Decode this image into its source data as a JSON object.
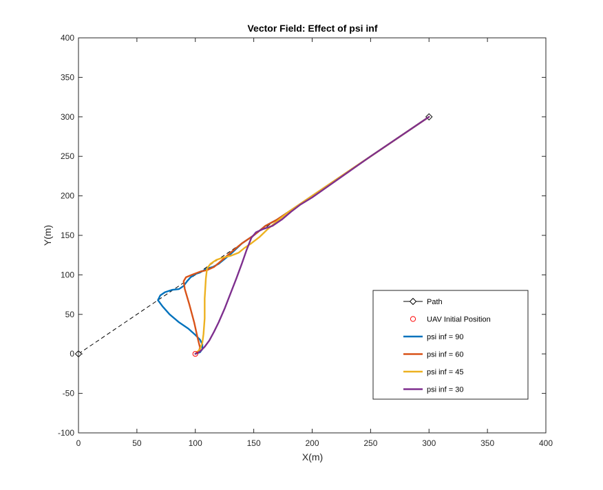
{
  "chart_data": {
    "type": "line",
    "title": "Vector Field: Effect of psi inf",
    "xlabel": "X(m)",
    "ylabel": "Y(m)",
    "xlim": [
      0,
      400
    ],
    "ylim": [
      -100,
      400
    ],
    "xticks": [
      0,
      50,
      100,
      150,
      200,
      250,
      300,
      350,
      400
    ],
    "yticks": [
      -100,
      -50,
      0,
      50,
      100,
      150,
      200,
      250,
      300,
      350,
      400
    ],
    "grid": false,
    "legend_position": "bottom-right",
    "series": [
      {
        "name": "Path",
        "style": "dashed",
        "marker": "diamond",
        "color": "#000000",
        "points": [
          [
            0,
            0
          ],
          [
            300,
            300
          ]
        ]
      },
      {
        "name": "UAV Initial Position",
        "style": "marker-only",
        "marker": "circle",
        "color": "#ff0000",
        "points": [
          [
            100,
            0
          ]
        ]
      },
      {
        "name": "psi inf = 90",
        "style": "solid",
        "color": "#0072bd",
        "points": [
          [
            100,
            0
          ],
          [
            104,
            2
          ],
          [
            106,
            6
          ],
          [
            106,
            12
          ],
          [
            104,
            18
          ],
          [
            100,
            24
          ],
          [
            94,
            32
          ],
          [
            86,
            40
          ],
          [
            78,
            50
          ],
          [
            72,
            60
          ],
          [
            68,
            68
          ],
          [
            70,
            74
          ],
          [
            74,
            78
          ],
          [
            80,
            81
          ],
          [
            86,
            82
          ],
          [
            90,
            86
          ],
          [
            93,
            92
          ],
          [
            96,
            97
          ],
          [
            100,
            101
          ],
          [
            104,
            103
          ],
          [
            110,
            108
          ],
          [
            115,
            110
          ],
          [
            120,
            114
          ],
          [
            130,
            126
          ],
          [
            140,
            140
          ],
          [
            150,
            150
          ],
          [
            160,
            162
          ],
          [
            170,
            170
          ],
          [
            180,
            180
          ],
          [
            200,
            200
          ],
          [
            250,
            250
          ],
          [
            300,
            300
          ]
        ]
      },
      {
        "name": "psi inf = 60",
        "style": "solid",
        "color": "#d95319",
        "points": [
          [
            100,
            0
          ],
          [
            103,
            3
          ],
          [
            104,
            8
          ],
          [
            102,
            20
          ],
          [
            99,
            40
          ],
          [
            95,
            62
          ],
          [
            91,
            82
          ],
          [
            90,
            92
          ],
          [
            92,
            97
          ],
          [
            97,
            100
          ],
          [
            104,
            104
          ],
          [
            110,
            106
          ],
          [
            116,
            110
          ],
          [
            124,
            120
          ],
          [
            130,
            128
          ],
          [
            140,
            140
          ],
          [
            150,
            150
          ],
          [
            160,
            162
          ],
          [
            170,
            170
          ],
          [
            180,
            180
          ],
          [
            200,
            200
          ],
          [
            250,
            250
          ],
          [
            300,
            300
          ]
        ]
      },
      {
        "name": "psi inf = 45",
        "style": "solid",
        "color": "#edb120",
        "points": [
          [
            100,
            0
          ],
          [
            104,
            6
          ],
          [
            106,
            14
          ],
          [
            107,
            25
          ],
          [
            108,
            45
          ],
          [
            108,
            70
          ],
          [
            109,
            95
          ],
          [
            110,
            108
          ],
          [
            113,
            114
          ],
          [
            118,
            119
          ],
          [
            124,
            122
          ],
          [
            130,
            124
          ],
          [
            137,
            128
          ],
          [
            142,
            134
          ],
          [
            148,
            140
          ],
          [
            155,
            148
          ],
          [
            162,
            158
          ],
          [
            170,
            168
          ],
          [
            180,
            180
          ],
          [
            200,
            200
          ],
          [
            250,
            250
          ],
          [
            300,
            300
          ]
        ]
      },
      {
        "name": "psi inf = 30",
        "style": "solid",
        "color": "#7e2f8e",
        "points": [
          [
            100,
            0
          ],
          [
            104,
            3
          ],
          [
            108,
            9
          ],
          [
            112,
            17
          ],
          [
            116,
            28
          ],
          [
            120,
            40
          ],
          [
            125,
            57
          ],
          [
            130,
            76
          ],
          [
            135,
            95
          ],
          [
            140,
            115
          ],
          [
            144,
            132
          ],
          [
            148,
            147
          ],
          [
            152,
            154
          ],
          [
            158,
            158
          ],
          [
            166,
            162
          ],
          [
            174,
            170
          ],
          [
            182,
            180
          ],
          [
            190,
            189
          ],
          [
            200,
            198
          ],
          [
            250,
            250
          ],
          [
            300,
            300
          ]
        ]
      }
    ]
  }
}
